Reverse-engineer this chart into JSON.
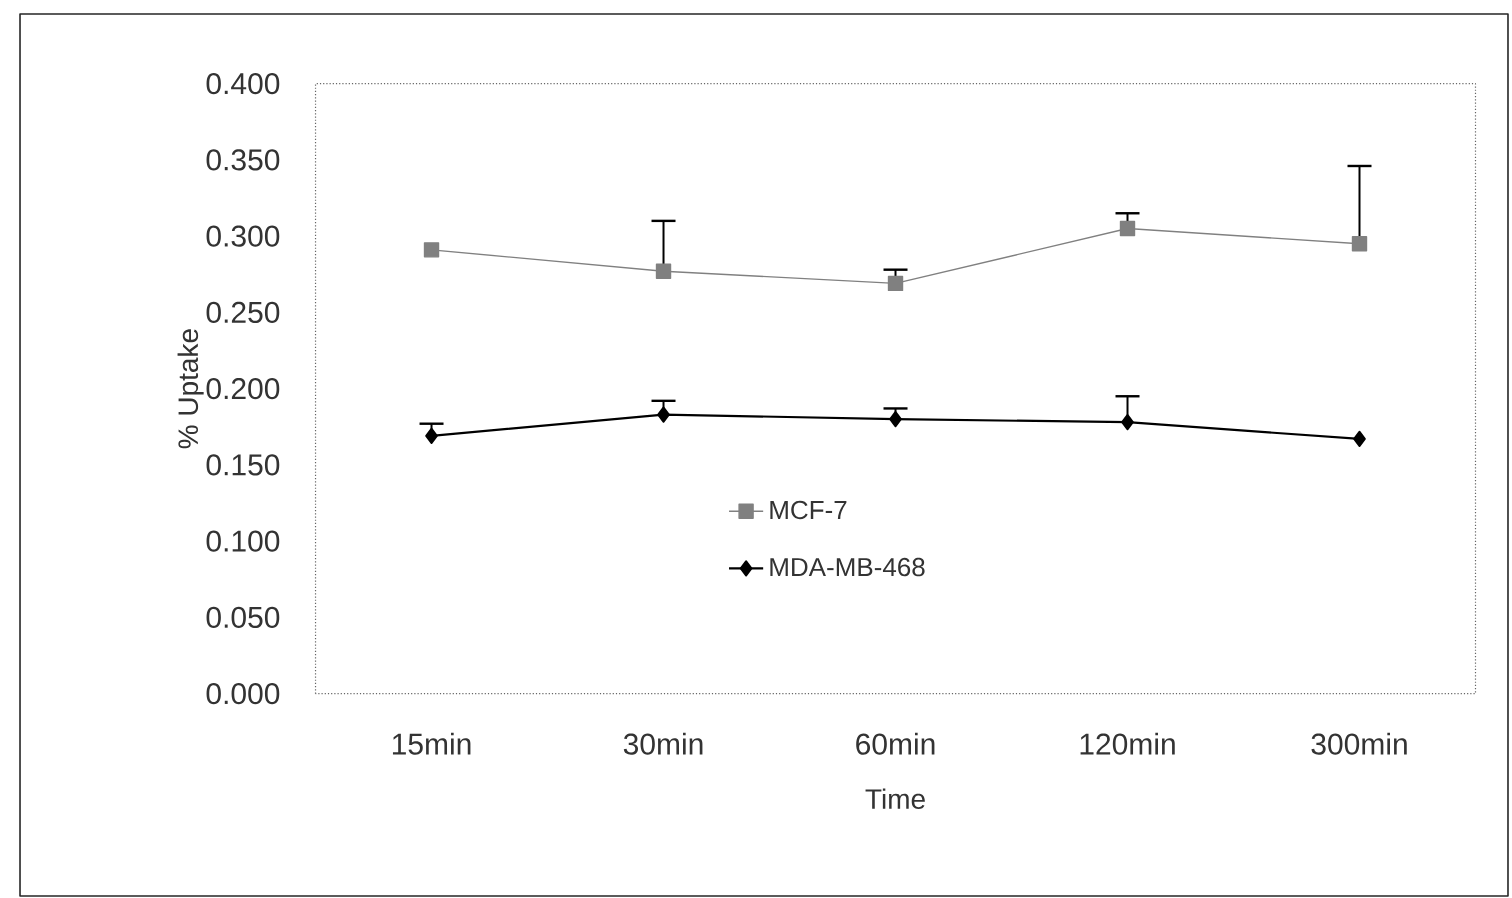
{
  "chart_data": {
    "type": "line",
    "xlabel": "Time",
    "ylabel": "% Uptake",
    "categories": [
      "15min",
      "30min",
      "60min",
      "120min",
      "300min"
    ],
    "ylim": [
      0,
      0.4
    ],
    "yticks": [
      {
        "value": 0,
        "label": "0.000"
      },
      {
        "value": 0.05,
        "label": "0.050"
      },
      {
        "value": 0.1,
        "label": "0.100"
      },
      {
        "value": 0.15,
        "label": "0.150"
      },
      {
        "value": 0.2,
        "label": "0.200"
      },
      {
        "value": 0.25,
        "label": "0.250"
      },
      {
        "value": 0.3,
        "label": "0.300"
      },
      {
        "value": 0.35,
        "label": "0.350"
      },
      {
        "value": 0.4,
        "label": "0.400"
      }
    ],
    "legend": "bottom",
    "grid": false,
    "series": [
      {
        "name": "MCF-7",
        "color": "#808080",
        "marker": "square",
        "values": [
          0.291,
          0.277,
          0.269,
          0.305,
          0.295
        ],
        "errors": [
          null,
          [
            0.277,
            0.31
          ],
          [
            0.269,
            0.278
          ],
          [
            0.305,
            0.315
          ],
          [
            0.295,
            0.346
          ]
        ]
      },
      {
        "name": "MDA-MB-468",
        "color": "#000000",
        "marker": "diamond",
        "values": [
          0.169,
          0.183,
          0.18,
          0.178,
          0.167
        ],
        "errors": [
          [
            0.169,
            0.177
          ],
          [
            0.183,
            0.192
          ],
          [
            0.18,
            0.187
          ],
          [
            0.178,
            0.195
          ],
          null
        ]
      }
    ]
  }
}
